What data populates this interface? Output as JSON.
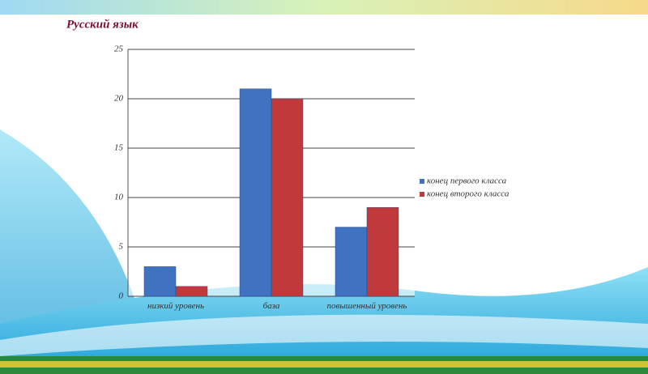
{
  "chart_data": {
    "type": "bar",
    "title": "Русский язык",
    "categories": [
      "низкий уровень",
      "база",
      "повышенный уровень"
    ],
    "series": [
      {
        "name": "конец первого класса",
        "color": "#3f72c0",
        "values": [
          3,
          21,
          7
        ]
      },
      {
        "name": "конец второго класса",
        "color": "#c0393b",
        "values": [
          1,
          20,
          9
        ]
      }
    ],
    "ylim": [
      0,
      25
    ],
    "yticks": [
      0,
      5,
      10,
      15,
      20,
      25
    ],
    "grid": true,
    "legend": "right"
  }
}
